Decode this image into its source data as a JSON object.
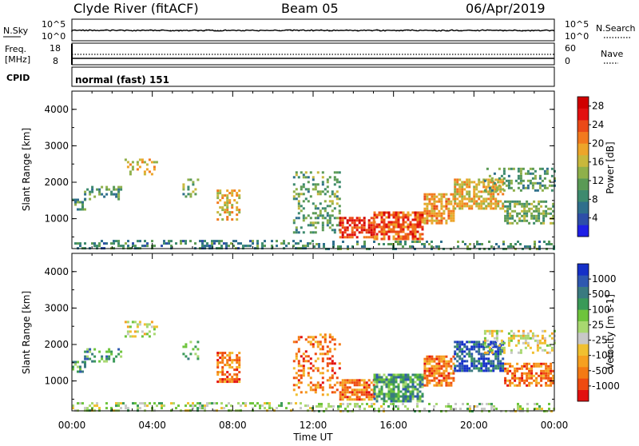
{
  "header": {
    "station": "Clyde River (fitACF)",
    "beam": "Beam 05",
    "date": "06/Apr/2019"
  },
  "status_panels": {
    "nsky_label": "N.Sky",
    "nsky_ticks": [
      "10^5",
      "10^0"
    ],
    "nsearch_label": "N.Search",
    "freq_label_line1": "Freq.",
    "freq_label_line2": "[MHz]",
    "freq_ticks": [
      "18",
      "8"
    ],
    "nave_label": "Nave",
    "nave_ticks": [
      "60",
      "0"
    ],
    "cpid_label": "CPID",
    "cpid_text": "normal (fast) 151"
  },
  "chart_data": [
    {
      "type": "heatmap",
      "name": "power",
      "ylabel": "Slant Range [km]",
      "xlabel": "Time UT",
      "x_ticks": [
        "00:00",
        "04:00",
        "08:00",
        "12:00",
        "16:00",
        "20:00",
        "00:00"
      ],
      "y_ticks": [
        "1000",
        "2000",
        "3000",
        "4000"
      ],
      "ylim": [
        180,
        4500
      ],
      "xlim_hours": [
        0,
        24
      ],
      "colorbar": {
        "label": "Power [dB]",
        "ticks": [
          "4",
          "8",
          "12",
          "16",
          "20",
          "24",
          "28"
        ],
        "range": [
          0,
          30
        ],
        "colors": [
          "#1f1fe6",
          "#2e4ea8",
          "#2f6f8c",
          "#3d8a6e",
          "#5a9a55",
          "#8fb04a",
          "#c8b83c",
          "#eda52a",
          "#f27a1e",
          "#ea4a18",
          "#e21010",
          "#d00000"
        ]
      },
      "clusters": [
        {
          "t": [
            0.0,
            0.6
          ],
          "r": [
            1250,
            1550
          ],
          "v": 9,
          "d": 0.6
        },
        {
          "t": [
            0.6,
            2.5
          ],
          "r": [
            1550,
            1900
          ],
          "v": 10,
          "d": 0.35
        },
        {
          "t": [
            2.5,
            4.2
          ],
          "r": [
            2250,
            2650
          ],
          "v": 18,
          "d": 0.3
        },
        {
          "t": [
            5.5,
            6.3
          ],
          "r": [
            1600,
            2100
          ],
          "v": 11,
          "d": 0.3
        },
        {
          "t": [
            7.2,
            8.3
          ],
          "r": [
            1000,
            1800
          ],
          "v": 18,
          "d": 0.55
        },
        {
          "t": [
            0.0,
            12.0
          ],
          "r": [
            190,
            420
          ],
          "v": 8,
          "d": 0.35
        },
        {
          "t": [
            11.0,
            13.3
          ],
          "r": [
            600,
            2300
          ],
          "v": 11,
          "d": 0.3
        },
        {
          "t": [
            13.3,
            15.0
          ],
          "r": [
            500,
            1050
          ],
          "v": 26,
          "d": 0.75
        },
        {
          "t": [
            15.0,
            17.5
          ],
          "r": [
            450,
            1200
          ],
          "v": 24,
          "d": 0.75
        },
        {
          "t": [
            17.5,
            19.0
          ],
          "r": [
            900,
            1700
          ],
          "v": 20,
          "d": 0.7
        },
        {
          "t": [
            19.0,
            21.5
          ],
          "r": [
            1300,
            2100
          ],
          "v": 18,
          "d": 0.7
        },
        {
          "t": [
            21.5,
            24.0
          ],
          "r": [
            900,
            1500
          ],
          "v": 12,
          "d": 0.6
        },
        {
          "t": [
            20.5,
            24.0
          ],
          "r": [
            1800,
            2400
          ],
          "v": 10,
          "d": 0.35
        },
        {
          "t": [
            12.0,
            24.0
          ],
          "r": [
            190,
            400
          ],
          "v": 9,
          "d": 0.3
        }
      ]
    },
    {
      "type": "heatmap",
      "name": "velocity",
      "ylabel": "Slant Range [km]",
      "xlabel": "Time UT",
      "x_ticks": [
        "00:00",
        "04:00",
        "08:00",
        "12:00",
        "16:00",
        "20:00",
        "00:00"
      ],
      "y_ticks": [
        "1000",
        "2000",
        "3000",
        "4000"
      ],
      "ylim": [
        180,
        4500
      ],
      "xlim_hours": [
        0,
        24
      ],
      "colorbar": {
        "label": "Velocity [m s-1]",
        "ticks": [
          "1000",
          "500",
          "100",
          "25",
          "-25",
          "-100",
          "-500",
          "-1000"
        ],
        "colors": [
          "#1530c8",
          "#2e58b0",
          "#3a7a80",
          "#3a9a58",
          "#6ec43c",
          "#a8d870",
          "#c8c8c8",
          "#f0c030",
          "#f6a020",
          "#f47a14",
          "#ee4a10",
          "#e21010"
        ]
      },
      "clusters": [
        {
          "t": [
            0.0,
            0.6
          ],
          "r": [
            1250,
            1550
          ],
          "v": 3,
          "d": 0.6
        },
        {
          "t": [
            0.6,
            2.5
          ],
          "r": [
            1550,
            1900
          ],
          "v": 3,
          "d": 0.35
        },
        {
          "t": [
            2.5,
            4.2
          ],
          "r": [
            2250,
            2650
          ],
          "v": 6,
          "d": 0.3
        },
        {
          "t": [
            5.5,
            6.3
          ],
          "r": [
            1600,
            2100
          ],
          "v": 4,
          "d": 0.3
        },
        {
          "t": [
            7.2,
            8.3
          ],
          "r": [
            1000,
            1800
          ],
          "v": 9,
          "d": 0.55
        },
        {
          "t": [
            0.0,
            12.0
          ],
          "r": [
            190,
            420
          ],
          "v": 5,
          "d": 0.35
        },
        {
          "t": [
            11.0,
            13.3
          ],
          "r": [
            600,
            2300
          ],
          "v": 9,
          "d": 0.3
        },
        {
          "t": [
            13.3,
            15.0
          ],
          "r": [
            500,
            1050
          ],
          "v": 9,
          "d": 0.75
        },
        {
          "t": [
            15.0,
            17.5
          ],
          "r": [
            450,
            1200
          ],
          "v": 3,
          "d": 0.75
        },
        {
          "t": [
            17.5,
            19.0
          ],
          "r": [
            900,
            1700
          ],
          "v": 9,
          "d": 0.7
        },
        {
          "t": [
            19.0,
            21.5
          ],
          "r": [
            1300,
            2100
          ],
          "v": 1,
          "d": 0.7
        },
        {
          "t": [
            21.5,
            24.0
          ],
          "r": [
            900,
            1500
          ],
          "v": 9,
          "d": 0.6
        },
        {
          "t": [
            20.5,
            24.0
          ],
          "r": [
            1800,
            2400
          ],
          "v": 6,
          "d": 0.35
        },
        {
          "t": [
            12.0,
            24.0
          ],
          "r": [
            190,
            400
          ],
          "v": 5,
          "d": 0.3
        }
      ]
    }
  ]
}
